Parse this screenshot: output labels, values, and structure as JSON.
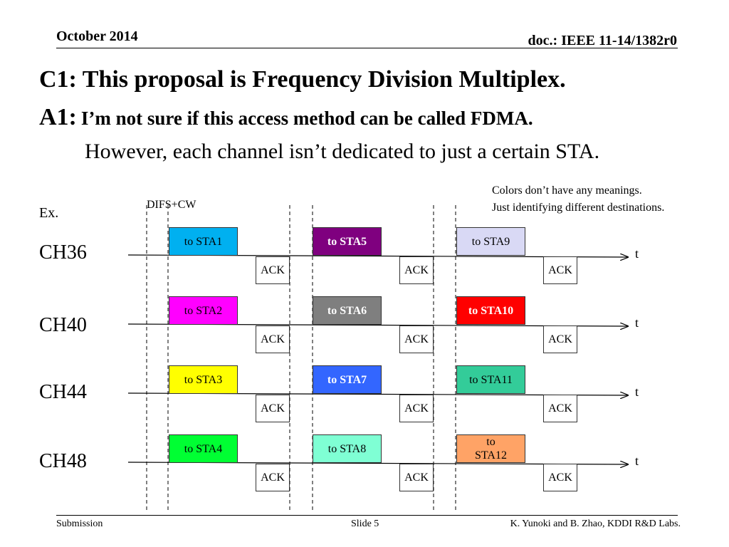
{
  "header": {
    "date": "October 2014",
    "doc": "doc.: IEEE 11-14/1382r0"
  },
  "title": "C1: This proposal is Frequency Division Multiplex.",
  "answer": {
    "prefix": "A1:",
    "text": "I’m not sure if this access method can be called FDMA."
  },
  "subtext": "However, each channel isn’t dedicated to just a certain STA.",
  "note": {
    "line1": "Colors don’t have any meanings.",
    "line2": "Just identifying different destinations."
  },
  "example_label": "Ex.",
  "difs_label": "DIFS+CW",
  "time_label": "t",
  "ack_label": "ACK",
  "channels": [
    {
      "name": "CH36",
      "frames": [
        {
          "label": "to STA1",
          "color": "#00b0f0",
          "text_color": "#000000",
          "bold": false
        },
        {
          "label": "to STA5",
          "color": "#7f007f",
          "text_color": "#ffffff",
          "bold": true
        },
        {
          "label": "to STA9",
          "color": "#d9d9f5",
          "text_color": "#000000",
          "bold": false
        }
      ]
    },
    {
      "name": "CH40",
      "frames": [
        {
          "label": "to STA2",
          "color": "#ff00ff",
          "text_color": "#000000",
          "bold": false
        },
        {
          "label": "to STA6",
          "color": "#7f7f7f",
          "text_color": "#ffffff",
          "bold": true
        },
        {
          "label": "to STA10",
          "color": "#ff0000",
          "text_color": "#ffffff",
          "bold": true
        }
      ]
    },
    {
      "name": "CH44",
      "frames": [
        {
          "label": "to STA3",
          "color": "#ffff00",
          "text_color": "#000000",
          "bold": false
        },
        {
          "label": "to STA7",
          "color": "#3366ff",
          "text_color": "#ffffff",
          "bold": true
        },
        {
          "label": "to STA11",
          "color": "#33cc99",
          "text_color": "#000000",
          "bold": false
        }
      ]
    },
    {
      "name": "CH48",
      "frames": [
        {
          "label": "to STA4",
          "color": "#00ff33",
          "text_color": "#000000",
          "bold": false
        },
        {
          "label": "to STA8",
          "color": "#7fffd4",
          "text_color": "#000000",
          "bold": false
        },
        {
          "label": "to\nSTA12",
          "color": "#ffa366",
          "text_color": "#000000",
          "bold": false
        }
      ]
    }
  ],
  "footer": {
    "left": "Submission",
    "center": "Slide 5",
    "right": "K. Yunoki and B. Zhao, KDDI R&D Labs."
  }
}
